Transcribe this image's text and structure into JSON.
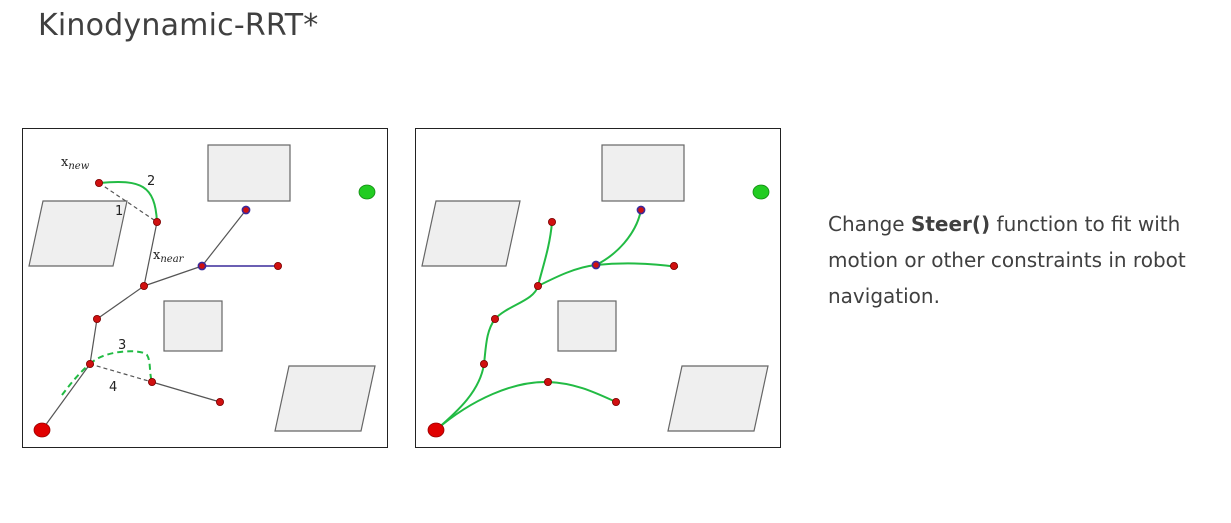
{
  "title": "Kinodynamic-RRT*",
  "left_panel": {
    "labels": {
      "x_new": {
        "main": "x",
        "sub": "new"
      },
      "x_near": {
        "main": "x",
        "sub": "near"
      },
      "step1": "1",
      "step2": "2",
      "step3": "3",
      "step4": "4"
    }
  },
  "caption": {
    "pre": "Change ",
    "bold": "Steer()",
    "post": " function to fit with motion or other constraints in robot navigation."
  },
  "colors": {
    "start": "#e00000",
    "goal": "#22cc22",
    "node": "#d01010",
    "kinodynamic_edge": "#22bb44",
    "straight_edge": "#555555",
    "highlight_edge": "#3a2a9a",
    "obstacle_fill": "#efefef"
  }
}
